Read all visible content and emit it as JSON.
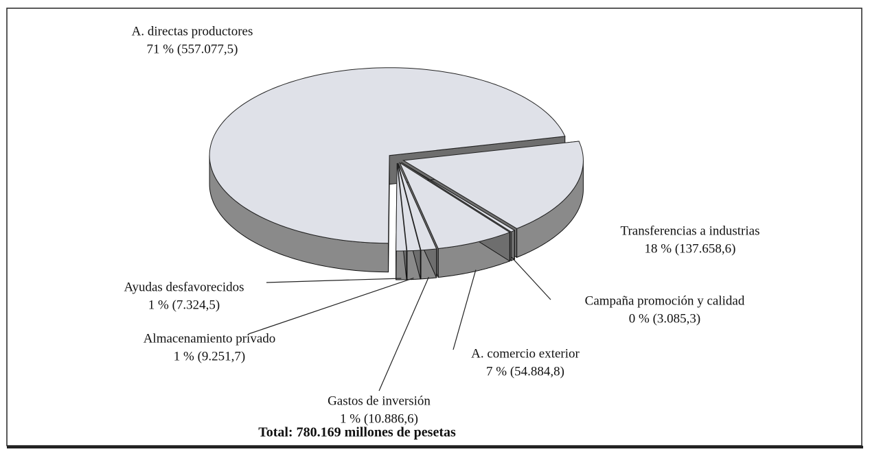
{
  "chart_data": {
    "type": "pie3d",
    "categories": [
      "Transferencias a industrias",
      "Campaña promoción y calidad",
      "A. comercio exterior",
      "Gastos de inversión",
      "Almacenamiento privado",
      "Ayudas desfavorecidos",
      "A. directas productores"
    ],
    "values": [
      137658.6,
      3085.3,
      54884.8,
      10886.6,
      9251.7,
      7324.5,
      557077.5
    ],
    "value_labels": [
      "18 % (137.658,6)",
      "0 % (3.085,3)",
      "7 % (54.884,8)",
      "1 % (10.886,6)",
      "1 % (9.251,7)",
      "1 % (7.324,5)",
      "71 % (557.077,5)"
    ],
    "color": "#dfe1e8",
    "side_color": "#8a8a8a",
    "total_label": "Total: 780.169 millones de pesetas"
  }
}
